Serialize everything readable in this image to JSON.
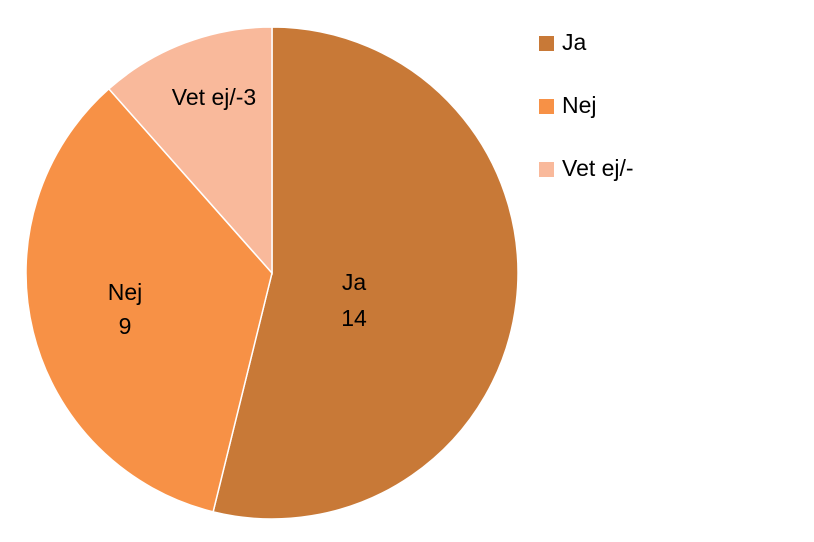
{
  "chart_data": {
    "type": "pie",
    "categories": [
      "Ja",
      "Nej",
      "Vet ej/-"
    ],
    "values": [
      14,
      9,
      3
    ],
    "colors": [
      "#c87937",
      "#f79146",
      "#f9b99b"
    ],
    "legend": "right"
  }
}
